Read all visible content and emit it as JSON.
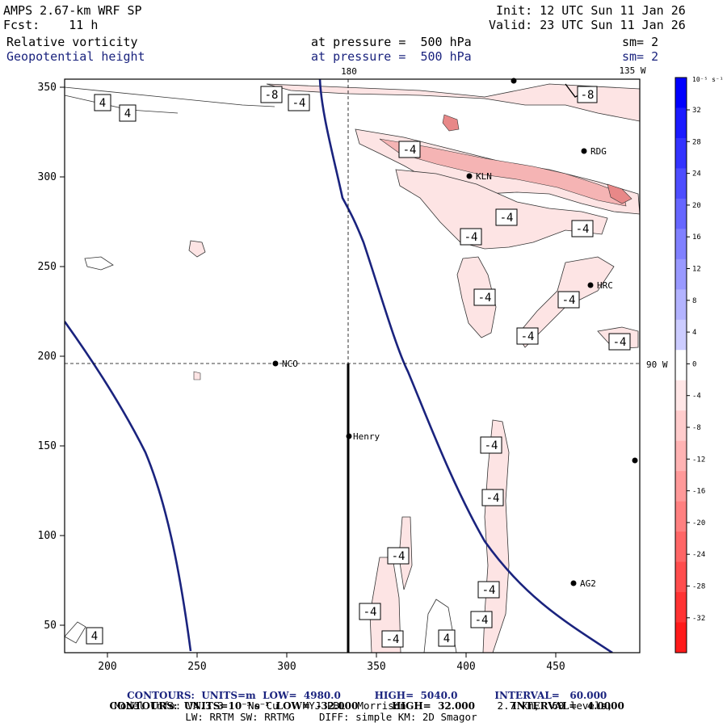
{
  "header": {
    "model": "AMPS 2.67-km WRF SP",
    "fcst_label": "Fcst:",
    "fcst_value": "11 h",
    "init": "Init: 12 UTC Sun 11 Jan 26",
    "valid": "Valid: 23 UTC Sun 11 Jan 26",
    "field1": "Relative vorticity",
    "field1_level": "at pressure =  500 hPa",
    "field1_sm": "sm= 2",
    "field2": "Geopotential height",
    "field2_level": "at pressure =  500 hPa",
    "field2_sm": "sm= 2"
  },
  "map": {
    "lon_labels": {
      "top_180": "180",
      "top_135w": "135 W",
      "right_90w": "90 W"
    },
    "x_ticks": [
      "200",
      "250",
      "300",
      "350",
      "400",
      "450"
    ],
    "y_ticks": [
      "350",
      "300",
      "250",
      "200",
      "150",
      "100",
      "50"
    ],
    "stations": [
      {
        "name": "RDG"
      },
      {
        "name": "KLN"
      },
      {
        "name": "HRC"
      },
      {
        "name": "NCO"
      },
      {
        "name": "Henry"
      },
      {
        "name": "AG2"
      }
    ],
    "contour_labels": {
      "pos4": "4",
      "neg4": "-4",
      "neg8": "-8"
    },
    "colors": {
      "height_contour": "#1a237e",
      "neg_light": "#fde4e4",
      "neg_mid": "#f5b4b4",
      "neg_dark": "#e88888"
    }
  },
  "colorbar": {
    "unit": "10⁻⁵ s⁻¹",
    "labels": [
      "32",
      "28",
      "24",
      "20",
      "16",
      "12",
      "8",
      "4",
      "0",
      "-4",
      "-8",
      "-12",
      "-16",
      "-20",
      "-24",
      "-28",
      "-32"
    ],
    "colors": [
      "#0000ff",
      "#1a1aff",
      "#3333ff",
      "#4d4dff",
      "#6666ff",
      "#8080ff",
      "#9999ff",
      "#b3b3ff",
      "#ccccff",
      "#ffffff",
      "#ffe6e6",
      "#ffcccc",
      "#ffb3b3",
      "#ff9999",
      "#ff8080",
      "#ff6666",
      "#ff4d4d",
      "#ff3333",
      "#ff1a1a"
    ]
  },
  "footer": {
    "line1_a": "CONTOURS:  UNITS=m  LOW=  4980.0",
    "line1_b": "HIGH=  5040.0",
    "line1_c": "INTERVAL=   60.000",
    "line2_a": "CONTOURS:  UNITS=10⁻⁵ s⁻¹  LOW=  -32.000",
    "line2_b": "HIGH=  32.000",
    "line2_c": "INTERVAL=   4.0000",
    "line3": "Model Info: V4.3.3    No Cu    MYJ PBL  Morrison               2.7 km,  60 levels,",
    "line4": "LW: RRTM SW: RRTMG    DIFF: simple KM: 2D Smagor"
  }
}
